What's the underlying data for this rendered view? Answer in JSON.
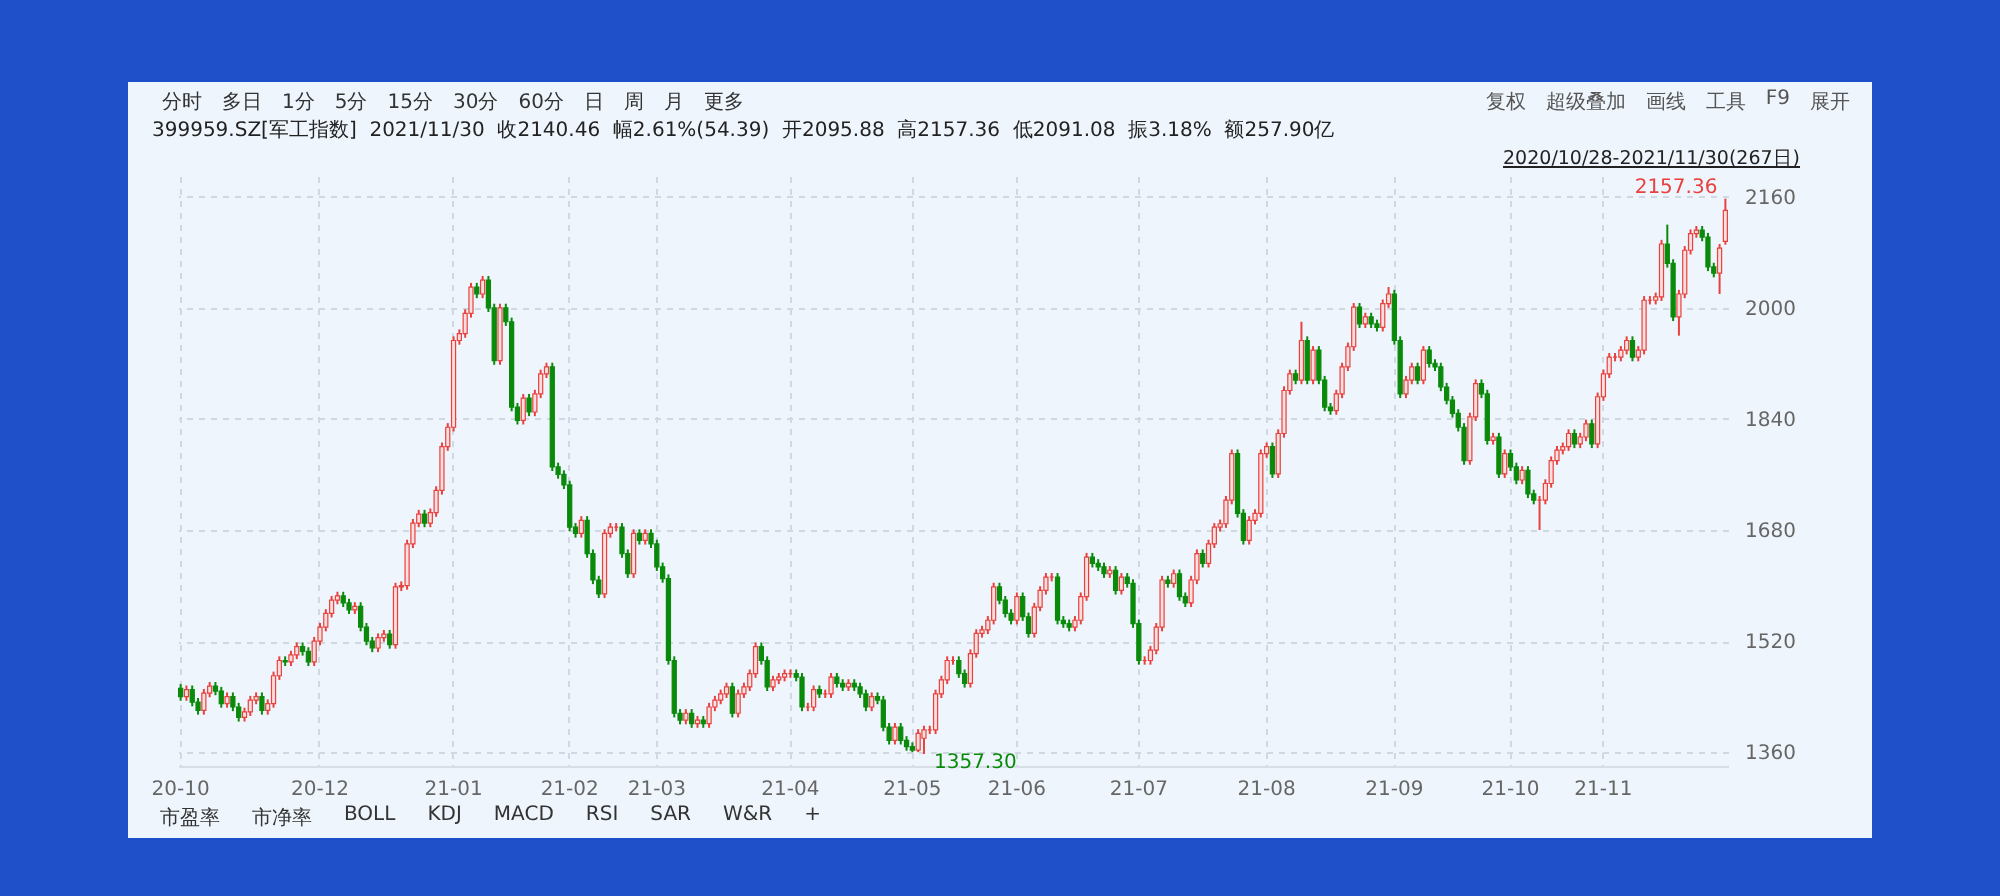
{
  "chart_data": {
    "type": "candlestick",
    "title": "399959.SZ[军工指数]  2021/11/30  收2140.46  幅2.61%(54.39)  开2095.88  高2157.36  低2091.08  振3.18%  额257.90亿",
    "subtitle": "2020/10/28-2021/11/30(267日)",
    "categories": [
      "20-10",
      null,
      null,
      null,
      null,
      null,
      null,
      null,
      null,
      null,
      null,
      null,
      null,
      null,
      null,
      null,
      null,
      null,
      null,
      null,
      null,
      null,
      null,
      null,
      "20-12",
      null,
      null,
      null,
      null,
      null,
      null,
      null,
      null,
      null,
      null,
      null,
      null,
      null,
      null,
      null,
      null,
      null,
      null,
      null,
      null,
      null,
      null,
      "21-01",
      null,
      null,
      null,
      null,
      null,
      null,
      null,
      null,
      null,
      null,
      null,
      null,
      null,
      null,
      null,
      null,
      null,
      null,
      null,
      "21-02",
      null,
      null,
      null,
      null,
      null,
      null,
      null,
      null,
      null,
      null,
      null,
      null,
      null,
      null,
      "21-03",
      null,
      null,
      null,
      null,
      null,
      null,
      null,
      null,
      null,
      null,
      null,
      null,
      null,
      null,
      null,
      null,
      null,
      null,
      null,
      null,
      null,
      null,
      "21-04",
      null,
      null,
      null,
      null,
      null,
      null,
      null,
      null,
      null,
      null,
      null,
      null,
      null,
      null,
      null,
      null,
      null,
      null,
      null,
      null,
      "21-05",
      null,
      null,
      null,
      null,
      null,
      null,
      null,
      null,
      null,
      null,
      null,
      null,
      null,
      null,
      null,
      null,
      null,
      "21-06",
      null,
      null,
      null,
      null,
      null,
      null,
      null,
      null,
      null,
      null,
      null,
      null,
      null,
      null,
      null,
      null,
      null,
      null,
      null,
      null,
      "21-07",
      null,
      null,
      null,
      null,
      null,
      null,
      null,
      null,
      null,
      null,
      null,
      null,
      null,
      null,
      null,
      null,
      null,
      null,
      null,
      null,
      null,
      "21-08",
      null,
      null,
      null,
      null,
      null,
      null,
      null,
      null,
      null,
      null,
      null,
      null,
      null,
      null,
      null,
      null,
      null,
      null,
      null,
      null,
      null,
      "21-09",
      null,
      null,
      null,
      null,
      null,
      null,
      null,
      null,
      null,
      null,
      null,
      null,
      null,
      null,
      null,
      null,
      null,
      null,
      null,
      "21-10",
      null,
      null,
      null,
      null,
      null,
      null,
      null,
      null,
      null,
      null,
      null,
      null,
      null,
      null,
      null,
      "21-11",
      null,
      null,
      null,
      null,
      null,
      null,
      null,
      null,
      null,
      null,
      null,
      null,
      null,
      null,
      null,
      null,
      null,
      null,
      null,
      null,
      null
    ],
    "ohlc": [
      [
        1452,
        1458,
        1434,
        1440
      ],
      [
        1440,
        1456,
        1434,
        1450
      ],
      [
        1450,
        1456,
        1426,
        1432
      ],
      [
        1432,
        1438,
        1414,
        1420
      ],
      [
        1420,
        1451,
        1414,
        1445
      ],
      [
        1445,
        1461,
        1439,
        1455
      ],
      [
        1455,
        1461,
        1442,
        1448
      ],
      [
        1448,
        1454,
        1424,
        1430
      ],
      [
        1430,
        1446,
        1424,
        1440
      ],
      [
        1440,
        1446,
        1419,
        1425
      ],
      [
        1425,
        1431,
        1404,
        1410
      ],
      [
        1410,
        1424,
        1404,
        1418
      ],
      [
        1418,
        1441,
        1412,
        1435
      ],
      [
        1435,
        1446,
        1429,
        1440
      ],
      [
        1440,
        1446,
        1414,
        1420
      ],
      [
        1420,
        1436,
        1414,
        1430
      ],
      [
        1430,
        1476,
        1424,
        1470
      ],
      [
        1470,
        1498,
        1464,
        1492
      ],
      [
        1492,
        1498,
        1484,
        1490
      ],
      [
        1490,
        1506,
        1484,
        1500
      ],
      [
        1500,
        1518,
        1494,
        1512
      ],
      [
        1512,
        1518,
        1499,
        1505
      ],
      [
        1505,
        1511,
        1484,
        1490
      ],
      [
        1490,
        1526,
        1484,
        1520
      ],
      [
        1520,
        1546,
        1514,
        1540
      ],
      [
        1540,
        1566,
        1534,
        1560
      ],
      [
        1560,
        1585,
        1554,
        1579
      ],
      [
        1579,
        1591,
        1573,
        1585
      ],
      [
        1585,
        1591,
        1569,
        1575
      ],
      [
        1575,
        1581,
        1559,
        1565
      ],
      [
        1565,
        1576,
        1559,
        1570
      ],
      [
        1570,
        1576,
        1534,
        1540
      ],
      [
        1540,
        1546,
        1514,
        1520
      ],
      [
        1520,
        1526,
        1504,
        1510
      ],
      [
        1510,
        1531,
        1504,
        1525
      ],
      [
        1525,
        1536,
        1519,
        1530
      ],
      [
        1530,
        1536,
        1509,
        1515
      ],
      [
        1515,
        1604,
        1509,
        1598
      ],
      [
        1598,
        1606,
        1592,
        1600
      ],
      [
        1600,
        1666,
        1594,
        1660
      ],
      [
        1660,
        1696,
        1654,
        1690
      ],
      [
        1690,
        1709,
        1684,
        1703
      ],
      [
        1703,
        1709,
        1684,
        1690
      ],
      [
        1690,
        1711,
        1684,
        1705
      ],
      [
        1705,
        1743,
        1699,
        1737
      ],
      [
        1737,
        1806,
        1731,
        1800
      ],
      [
        1800,
        1834,
        1794,
        1828
      ],
      [
        1828,
        1959,
        1822,
        1953
      ],
      [
        1953,
        1969,
        1947,
        1963
      ],
      [
        1963,
        1998,
        1957,
        1992
      ],
      [
        1992,
        2036,
        1986,
        2030
      ],
      [
        2030,
        2036,
        2014,
        2020
      ],
      [
        2020,
        2046,
        2014,
        2040
      ],
      [
        2040,
        2046,
        1994,
        2000
      ],
      [
        2000,
        2006,
        1918,
        1924
      ],
      [
        1924,
        2006,
        1918,
        2000
      ],
      [
        2000,
        2006,
        1974,
        1980
      ],
      [
        1980,
        1986,
        1851,
        1857
      ],
      [
        1857,
        1863,
        1832,
        1838
      ],
      [
        1838,
        1876,
        1832,
        1870
      ],
      [
        1870,
        1876,
        1844,
        1850
      ],
      [
        1850,
        1882,
        1844,
        1876
      ],
      [
        1876,
        1911,
        1870,
        1905
      ],
      [
        1905,
        1921,
        1899,
        1915
      ],
      [
        1915,
        1921,
        1765,
        1771
      ],
      [
        1771,
        1777,
        1754,
        1760
      ],
      [
        1760,
        1766,
        1739,
        1745
      ],
      [
        1745,
        1751,
        1678,
        1684
      ],
      [
        1684,
        1690,
        1669,
        1675
      ],
      [
        1675,
        1700,
        1669,
        1694
      ],
      [
        1694,
        1700,
        1640,
        1646
      ],
      [
        1646,
        1652,
        1602,
        1608
      ],
      [
        1608,
        1614,
        1582,
        1588
      ],
      [
        1588,
        1681,
        1582,
        1675
      ],
      [
        1675,
        1690,
        1669,
        1684
      ],
      [
        1684,
        1690,
        1678,
        1684
      ],
      [
        1684,
        1690,
        1640,
        1646
      ],
      [
        1646,
        1652,
        1611,
        1617
      ],
      [
        1617,
        1681,
        1611,
        1675
      ],
      [
        1675,
        1681,
        1659,
        1665
      ],
      [
        1665,
        1681,
        1659,
        1675
      ],
      [
        1675,
        1681,
        1654,
        1660
      ],
      [
        1660,
        1666,
        1621,
        1627
      ],
      [
        1627,
        1633,
        1604,
        1610
      ],
      [
        1610,
        1616,
        1486,
        1492
      ],
      [
        1492,
        1498,
        1410,
        1416
      ],
      [
        1416,
        1422,
        1400,
        1406
      ],
      [
        1406,
        1422,
        1400,
        1416
      ],
      [
        1416,
        1422,
        1395,
        1401
      ],
      [
        1401,
        1412,
        1395,
        1406
      ],
      [
        1406,
        1412,
        1395,
        1401
      ],
      [
        1401,
        1431,
        1395,
        1425
      ],
      [
        1425,
        1441,
        1419,
        1435
      ],
      [
        1435,
        1450,
        1429,
        1444
      ],
      [
        1444,
        1460,
        1438,
        1454
      ],
      [
        1454,
        1460,
        1410,
        1416
      ],
      [
        1416,
        1450,
        1410,
        1444
      ],
      [
        1444,
        1460,
        1438,
        1454
      ],
      [
        1454,
        1479,
        1448,
        1473
      ],
      [
        1473,
        1518,
        1467,
        1512
      ],
      [
        1512,
        1518,
        1486,
        1492
      ],
      [
        1492,
        1498,
        1448,
        1454
      ],
      [
        1454,
        1470,
        1448,
        1464
      ],
      [
        1464,
        1474,
        1458,
        1468
      ],
      [
        1468,
        1479,
        1462,
        1473
      ],
      [
        1473,
        1479,
        1467,
        1473
      ],
      [
        1473,
        1479,
        1462,
        1468
      ],
      [
        1468,
        1474,
        1419,
        1425
      ],
      [
        1425,
        1431,
        1419,
        1425
      ],
      [
        1425,
        1456,
        1419,
        1450
      ],
      [
        1450,
        1456,
        1438,
        1444
      ],
      [
        1444,
        1450,
        1438,
        1444
      ],
      [
        1444,
        1474,
        1438,
        1468
      ],
      [
        1468,
        1474,
        1453,
        1459
      ],
      [
        1459,
        1465,
        1448,
        1454
      ],
      [
        1454,
        1465,
        1448,
        1459
      ],
      [
        1459,
        1465,
        1448,
        1454
      ],
      [
        1454,
        1460,
        1438,
        1444
      ],
      [
        1444,
        1450,
        1419,
        1425
      ],
      [
        1425,
        1446,
        1419,
        1440
      ],
      [
        1440,
        1446,
        1429,
        1435
      ],
      [
        1435,
        1441,
        1390,
        1396
      ],
      [
        1396,
        1402,
        1371,
        1377
      ],
      [
        1377,
        1402,
        1371,
        1396
      ],
      [
        1396,
        1402,
        1371,
        1377
      ],
      [
        1377,
        1383,
        1362,
        1368
      ],
      [
        1368,
        1374,
        1360,
        1363
      ],
      [
        1363,
        1393,
        1360,
        1387
      ],
      [
        1380,
        1398,
        1357.3,
        1392
      ],
      [
        1392,
        1398,
        1386,
        1392
      ],
      [
        1392,
        1450,
        1386,
        1444
      ],
      [
        1444,
        1470,
        1438,
        1464
      ],
      [
        1464,
        1498,
        1458,
        1492
      ],
      [
        1492,
        1498,
        1486,
        1492
      ],
      [
        1492,
        1498,
        1467,
        1473
      ],
      [
        1473,
        1479,
        1453,
        1459
      ],
      [
        1459,
        1508,
        1453,
        1502
      ],
      [
        1502,
        1537,
        1496,
        1531
      ],
      [
        1531,
        1542,
        1525,
        1536
      ],
      [
        1536,
        1556,
        1530,
        1550
      ],
      [
        1550,
        1604,
        1544,
        1598
      ],
      [
        1598,
        1604,
        1573,
        1579
      ],
      [
        1579,
        1585,
        1554,
        1560
      ],
      [
        1560,
        1566,
        1544,
        1550
      ],
      [
        1550,
        1590,
        1544,
        1584
      ],
      [
        1584,
        1590,
        1549,
        1555
      ],
      [
        1555,
        1561,
        1525,
        1531
      ],
      [
        1531,
        1575,
        1525,
        1569
      ],
      [
        1569,
        1599,
        1563,
        1593
      ],
      [
        1593,
        1618,
        1587,
        1612
      ],
      [
        1612,
        1618,
        1606,
        1612
      ],
      [
        1612,
        1618,
        1544,
        1550
      ],
      [
        1550,
        1556,
        1539,
        1545
      ],
      [
        1545,
        1551,
        1534,
        1540
      ],
      [
        1540,
        1556,
        1534,
        1550
      ],
      [
        1550,
        1590,
        1544,
        1584
      ],
      [
        1584,
        1647,
        1578,
        1641
      ],
      [
        1641,
        1647,
        1626,
        1632
      ],
      [
        1632,
        1638,
        1621,
        1627
      ],
      [
        1627,
        1633,
        1611,
        1617
      ],
      [
        1617,
        1628,
        1611,
        1622
      ],
      [
        1622,
        1628,
        1587,
        1593
      ],
      [
        1593,
        1618,
        1587,
        1612
      ],
      [
        1612,
        1618,
        1597,
        1603
      ],
      [
        1603,
        1609,
        1539,
        1545
      ],
      [
        1545,
        1551,
        1486,
        1492
      ],
      [
        1492,
        1498,
        1486,
        1492
      ],
      [
        1492,
        1513,
        1486,
        1507
      ],
      [
        1507,
        1546,
        1501,
        1540
      ],
      [
        1540,
        1614,
        1534,
        1608
      ],
      [
        1608,
        1614,
        1597,
        1603
      ],
      [
        1603,
        1623,
        1597,
        1617
      ],
      [
        1617,
        1623,
        1578,
        1584
      ],
      [
        1584,
        1590,
        1569,
        1575
      ],
      [
        1575,
        1614,
        1569,
        1608
      ],
      [
        1608,
        1652,
        1602,
        1646
      ],
      [
        1646,
        1652,
        1626,
        1632
      ],
      [
        1632,
        1666,
        1626,
        1660
      ],
      [
        1660,
        1690,
        1654,
        1684
      ],
      [
        1684,
        1695,
        1678,
        1689
      ],
      [
        1689,
        1729,
        1683,
        1723
      ],
      [
        1723,
        1796,
        1717,
        1790
      ],
      [
        1790,
        1796,
        1698,
        1704
      ],
      [
        1704,
        1710,
        1659,
        1665
      ],
      [
        1665,
        1700,
        1659,
        1694
      ],
      [
        1694,
        1710,
        1688,
        1704
      ],
      [
        1704,
        1796,
        1698,
        1790
      ],
      [
        1790,
        1806,
        1784,
        1800
      ],
      [
        1800,
        1806,
        1755,
        1761
      ],
      [
        1761,
        1825,
        1755,
        1819
      ],
      [
        1819,
        1887,
        1813,
        1881
      ],
      [
        1881,
        1911,
        1875,
        1905
      ],
      [
        1905,
        1911,
        1890,
        1896
      ],
      [
        1896,
        1980,
        1890,
        1953
      ],
      [
        1953,
        1959,
        1890,
        1896
      ],
      [
        1896,
        1945,
        1890,
        1939
      ],
      [
        1939,
        1945,
        1890,
        1896
      ],
      [
        1896,
        1902,
        1851,
        1857
      ],
      [
        1857,
        1863,
        1846,
        1852
      ],
      [
        1852,
        1882,
        1846,
        1876
      ],
      [
        1876,
        1921,
        1870,
        1915
      ],
      [
        1915,
        1950,
        1909,
        1944
      ],
      [
        1944,
        2007,
        1938,
        2001
      ],
      [
        2001,
        2007,
        1971,
        1977
      ],
      [
        1977,
        1993,
        1971,
        1987
      ],
      [
        1987,
        1993,
        1971,
        1977
      ],
      [
        1977,
        1983,
        1966,
        1972
      ],
      [
        1972,
        2012,
        1966,
        2006
      ],
      [
        2006,
        2030,
        2000,
        2020
      ],
      [
        2020,
        2026,
        1947,
        1953
      ],
      [
        1953,
        1959,
        1870,
        1876
      ],
      [
        1876,
        1902,
        1870,
        1896
      ],
      [
        1896,
        1921,
        1890,
        1915
      ],
      [
        1915,
        1921,
        1890,
        1896
      ],
      [
        1896,
        1945,
        1890,
        1939
      ],
      [
        1939,
        1945,
        1914,
        1920
      ],
      [
        1920,
        1926,
        1909,
        1915
      ],
      [
        1915,
        1921,
        1880,
        1886
      ],
      [
        1886,
        1892,
        1861,
        1867
      ],
      [
        1867,
        1873,
        1842,
        1848
      ],
      [
        1848,
        1854,
        1822,
        1828
      ],
      [
        1828,
        1834,
        1774,
        1780
      ],
      [
        1780,
        1849,
        1774,
        1843
      ],
      [
        1843,
        1897,
        1837,
        1891
      ],
      [
        1891,
        1897,
        1870,
        1876
      ],
      [
        1876,
        1882,
        1803,
        1809
      ],
      [
        1809,
        1820,
        1803,
        1814
      ],
      [
        1814,
        1820,
        1755,
        1761
      ],
      [
        1761,
        1796,
        1755,
        1790
      ],
      [
        1790,
        1796,
        1765,
        1771
      ],
      [
        1771,
        1777,
        1746,
        1752
      ],
      [
        1752,
        1772,
        1746,
        1766
      ],
      [
        1766,
        1772,
        1726,
        1732
      ],
      [
        1732,
        1738,
        1717,
        1723
      ],
      [
        1723,
        1729,
        1680,
        1723
      ],
      [
        1723,
        1753,
        1717,
        1747
      ],
      [
        1747,
        1786,
        1741,
        1780
      ],
      [
        1780,
        1801,
        1774,
        1795
      ],
      [
        1795,
        1806,
        1789,
        1800
      ],
      [
        1800,
        1825,
        1794,
        1819
      ],
      [
        1819,
        1825,
        1798,
        1804
      ],
      [
        1804,
        1820,
        1798,
        1814
      ],
      [
        1814,
        1839,
        1808,
        1833
      ],
      [
        1833,
        1839,
        1798,
        1804
      ],
      [
        1804,
        1878,
        1798,
        1872
      ],
      [
        1872,
        1911,
        1866,
        1905
      ],
      [
        1905,
        1935,
        1899,
        1929
      ],
      [
        1929,
        1935,
        1923,
        1929
      ],
      [
        1929,
        1945,
        1923,
        1939
      ],
      [
        1939,
        1959,
        1933,
        1953
      ],
      [
        1953,
        1959,
        1923,
        1929
      ],
      [
        1929,
        1945,
        1923,
        1939
      ],
      [
        1939,
        2017,
        1933,
        2011
      ],
      [
        2011,
        2017,
        2005,
        2011
      ],
      [
        2011,
        2022,
        2005,
        2016
      ],
      [
        2016,
        2098,
        2010,
        2092
      ],
      [
        2092,
        2120,
        2058,
        2064
      ],
      [
        2064,
        2070,
        1981,
        1987
      ],
      [
        1987,
        2026,
        1960,
        2020
      ],
      [
        2020,
        2089,
        2014,
        2083
      ],
      [
        2083,
        2113,
        2077,
        2107
      ],
      [
        2107,
        2118,
        2101,
        2112
      ],
      [
        2112,
        2118,
        2096,
        2102
      ],
      [
        2102,
        2108,
        2053,
        2059
      ],
      [
        2059,
        2065,
        2044,
        2050
      ],
      [
        2050,
        2092,
        2020,
        2086.07
      ],
      [
        2095.88,
        2157.36,
        2091.08,
        2140.46
      ]
    ],
    "ylim": [
      1340,
      2190
    ],
    "yticks": [
      1360,
      1520,
      1680,
      1840,
      2000,
      2160
    ],
    "grid": true,
    "annotations": [
      "2157.36",
      "1357.30",
      "分时",
      "多日",
      "1分",
      "5分",
      "15分",
      "30分",
      "60分",
      "日",
      "周",
      "月",
      "更多",
      "复权",
      "超级叠加",
      "画线",
      "工具",
      "F9",
      "展开",
      "市盈率",
      "市净率",
      "BOLL",
      "KDJ",
      "MACD",
      "RSI",
      "SAR",
      "W&R",
      "+"
    ]
  }
}
